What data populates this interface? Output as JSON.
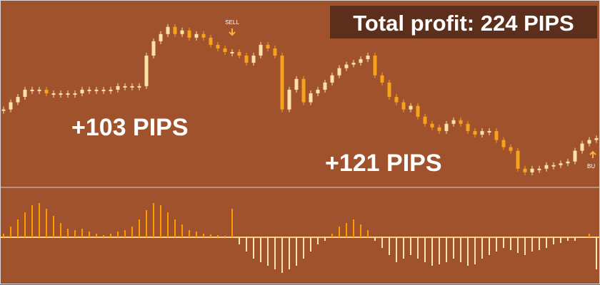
{
  "title": "Total profit: 224 PIPS",
  "annotations": [
    "+103 PIPS",
    "+121 PIPS"
  ],
  "signals": [
    "SELL",
    "BU"
  ],
  "chart_data": [
    {
      "type": "candlestick",
      "ylim": [
        0,
        100
      ],
      "up_color": "#ffe3a6",
      "down_color": "#f7a21b",
      "values": [
        43,
        47,
        50,
        54,
        54,
        54,
        52,
        52,
        52,
        52,
        52,
        54,
        54,
        54,
        54,
        54,
        56,
        56,
        56,
        56,
        73,
        81,
        85,
        89,
        85,
        87,
        83,
        85,
        83,
        79,
        77,
        75,
        75,
        73,
        69,
        73,
        79,
        77,
        73,
        43,
        54,
        60,
        47,
        52,
        54,
        58,
        62,
        66,
        68,
        69,
        71,
        73,
        62,
        58,
        50,
        47,
        43,
        45,
        39,
        35,
        33,
        31,
        35,
        37,
        35,
        31,
        29,
        31,
        31,
        26,
        22,
        20,
        10,
        8,
        10,
        10,
        12,
        12,
        13,
        14,
        20,
        24,
        26,
        27
      ]
    },
    {
      "type": "histogram",
      "ylim": [
        -65,
        65
      ],
      "pos_color": "#ff9a00",
      "neg_color": "#ffe4ad",
      "values": [
        5,
        15,
        25,
        35,
        45,
        48,
        40,
        30,
        20,
        12,
        10,
        12,
        8,
        5,
        3,
        5,
        8,
        10,
        15,
        25,
        38,
        48,
        45,
        35,
        25,
        18,
        10,
        8,
        5,
        4,
        3,
        2,
        40,
        -10,
        -20,
        -30,
        -35,
        -40,
        -45,
        -50,
        -45,
        -40,
        -30,
        -20,
        -10,
        -5,
        5,
        15,
        20,
        25,
        18,
        10,
        -5,
        -15,
        -25,
        -35,
        -30,
        -25,
        -30,
        -35,
        -40,
        -38,
        -35,
        -30,
        -35,
        -40,
        -38,
        -30,
        -25,
        -20,
        -15,
        -18,
        -22,
        -25,
        -20,
        -18,
        -15,
        -10,
        -8,
        -5,
        -5,
        0,
        5,
        -45
      ]
    }
  ]
}
